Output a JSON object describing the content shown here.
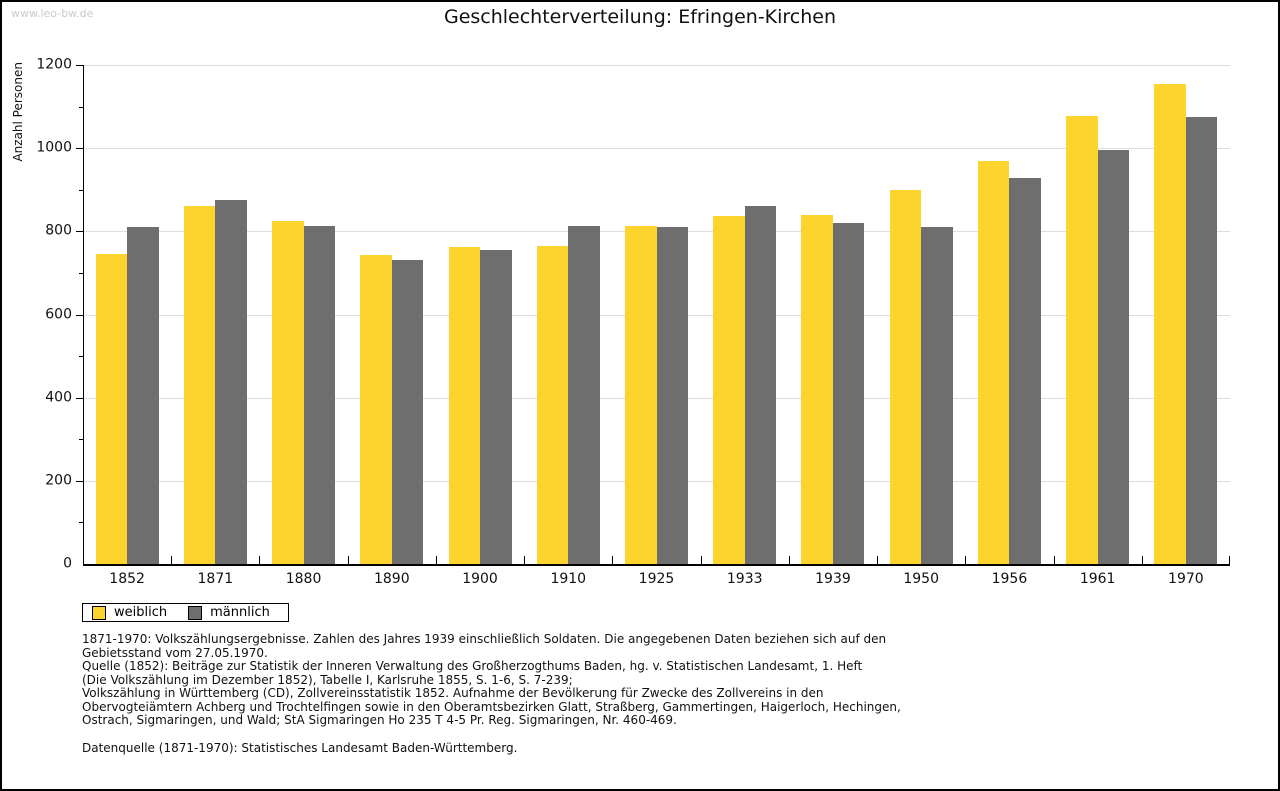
{
  "page": {
    "watermark": "www.leo-bw.de"
  },
  "header": {
    "title": "Geschlechterverteilung: Efringen-Kirchen"
  },
  "chart_data": {
    "type": "bar",
    "title": "Geschlechterverteilung: Efringen-Kirchen",
    "xlabel": "",
    "ylabel": "Anzahl Personen",
    "ylim": [
      0,
      1200
    ],
    "ytick_step": 200,
    "ytick_minor_step": 100,
    "grid": true,
    "legend_position": "bottom-left",
    "categories": [
      "1852",
      "1871",
      "1880",
      "1890",
      "1900",
      "1910",
      "1925",
      "1933",
      "1939",
      "1950",
      "1956",
      "1961",
      "1970"
    ],
    "series": [
      {
        "name": "weiblich",
        "color": "#FCD42D",
        "values": [
          745,
          860,
          825,
          742,
          763,
          765,
          814,
          838,
          840,
          900,
          970,
          1078,
          1155
        ]
      },
      {
        "name": "männlich",
        "color": "#6E6E6E",
        "values": [
          810,
          875,
          812,
          731,
          756,
          812,
          810,
          862,
          820,
          810,
          929,
          995,
          1075
        ]
      }
    ]
  },
  "legend": {
    "items": [
      {
        "label": "weiblich",
        "color": "#FCD42D"
      },
      {
        "label": "männlich",
        "color": "#6E6E6E"
      }
    ]
  },
  "notes": {
    "lines": [
      "1871-1970: Volkszählungsergebnisse. Zahlen des Jahres 1939 einschließlich Soldaten. Die angegebenen Daten beziehen sich auf den",
      "Gebietsstand vom 27.05.1970.",
      "Quelle (1852): Beiträge zur Statistik der Inneren Verwaltung des Großherzogthums Baden, hg. v. Statistischen Landesamt, 1. Heft",
      "(Die Volkszählung im Dezember 1852), Tabelle I, Karlsruhe 1855, S. 1-6, S. 7-239;",
      "Volkszählung in Württemberg (CD), Zollvereinsstatistik 1852. Aufnahme der Bevölkerung für Zwecke des Zollvereins in den",
      "Obervogteiämtern Achberg und Trochtelfingen sowie in den Oberamtsbezirken Glatt, Straßberg, Gammertingen, Haigerloch, Hechingen,",
      "Ostrach, Sigmaringen, und Wald; StA Sigmaringen Ho 235 T 4-5 Pr. Reg. Sigmaringen, Nr. 460-469."
    ],
    "datasource": "Datenquelle (1871-1970): Statistisches Landesamt Baden-Württemberg."
  },
  "colors": {
    "female_bar": "#FCD42D",
    "male_bar": "#6E6E6E",
    "gridline": "#DDDDDD",
    "axis": "#000000",
    "watermark": "#C9C9C9"
  }
}
